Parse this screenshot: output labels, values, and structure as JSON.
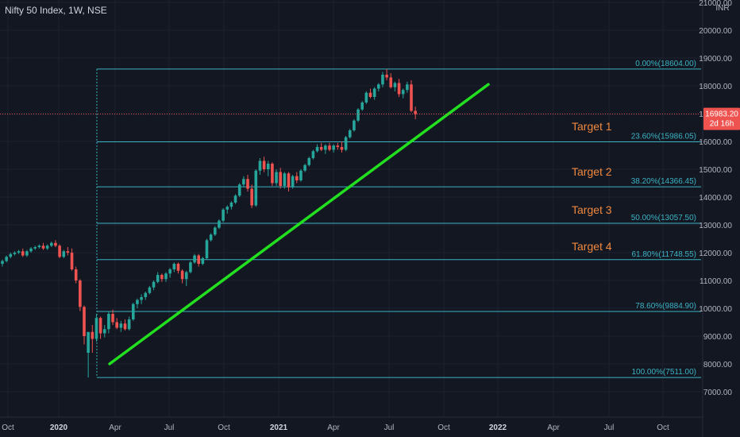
{
  "title": "Nifty 50 Index, 1W, NSE",
  "currency": "INR",
  "price_tag": {
    "price": "16983.20",
    "countdown": "2d 16h"
  },
  "colors": {
    "background": "#131722",
    "up": "#26a69a",
    "down": "#ef5350",
    "fib": "#3bb3c3",
    "trend": "#22e01f",
    "target": "#f0883e",
    "axis_text": "#b2b5be"
  },
  "chart_data": {
    "type": "candlestick",
    "title": "Nifty 50 Index, 1W, NSE",
    "x_tick_labels": [
      "Oct",
      "2020",
      "Apr",
      "Jul",
      "Oct",
      "2021",
      "Apr",
      "Jul",
      "Oct",
      "2022",
      "Apr",
      "Jul",
      "Oct"
    ],
    "y_tick_labels": [
      "7000.00",
      "8000.00",
      "9000.00",
      "10000.00",
      "11000.00",
      "12000.00",
      "13000.00",
      "14000.00",
      "15000.00",
      "16000.00",
      "17000.00",
      "18000.00",
      "19000.00",
      "20000.00",
      "21000.00"
    ],
    "ylim": [
      6600,
      21000
    ],
    "last_price": 16983.2,
    "fib_levels": [
      {
        "label": "0.00%(18604.00)",
        "value": 18604.0
      },
      {
        "label": "23.60%(15986.05)",
        "value": 15986.05
      },
      {
        "label": "38.20%(14366.45)",
        "value": 14366.45
      },
      {
        "label": "50.00%(13057.50)",
        "value": 13057.5
      },
      {
        "label": "61.80%(11748.55)",
        "value": 11748.55
      },
      {
        "label": "78.60%(9884.90)",
        "value": 9884.9
      },
      {
        "label": "100.00%(7511.00)",
        "value": 7511.0
      }
    ],
    "targets": [
      {
        "label": "Target 1",
        "value": 16400
      },
      {
        "label": "Target 2",
        "value": 14770
      },
      {
        "label": "Target 3",
        "value": 13400
      },
      {
        "label": "Target 4",
        "value": 12080
      }
    ],
    "trendline": {
      "start": {
        "date": "2020-03-23",
        "value": 8000
      },
      "end": {
        "date": "2021-12-06",
        "value": 18050
      }
    },
    "candles": [
      [
        11600,
        11750,
        11500,
        11700
      ],
      [
        11700,
        11900,
        11650,
        11850
      ],
      [
        11850,
        12000,
        11800,
        11950
      ],
      [
        11950,
        12050,
        11900,
        12000
      ],
      [
        12000,
        12100,
        11950,
        12050
      ],
      [
        12050,
        12150,
        11850,
        11900
      ],
      [
        11900,
        12100,
        11850,
        12050
      ],
      [
        12050,
        12200,
        12000,
        12150
      ],
      [
        12150,
        12250,
        12100,
        12200
      ],
      [
        12200,
        12300,
        12150,
        12250
      ],
      [
        12250,
        12350,
        12100,
        12150
      ],
      [
        12150,
        12300,
        12100,
        12250
      ],
      [
        12250,
        12400,
        12200,
        12350
      ],
      [
        12350,
        12450,
        12200,
        12250
      ],
      [
        12250,
        12300,
        11800,
        11850
      ],
      [
        11850,
        12100,
        11800,
        12050
      ],
      [
        12050,
        12200,
        11900,
        12000
      ],
      [
        12000,
        12150,
        11350,
        11400
      ],
      [
        11400,
        11500,
        10900,
        11000
      ],
      [
        11000,
        11050,
        9900,
        10050
      ],
      [
        10050,
        10100,
        8700,
        9000
      ],
      [
        8400,
        9100,
        7511,
        9150
      ],
      [
        9150,
        9400,
        8400,
        8900
      ],
      [
        8900,
        9800,
        8800,
        9650
      ],
      [
        9650,
        9700,
        8900,
        9100
      ],
      [
        9100,
        9400,
        8950,
        9250
      ],
      [
        9250,
        9900,
        9100,
        9800
      ],
      [
        9800,
        9950,
        9400,
        9500
      ],
      [
        9500,
        9650,
        9250,
        9300
      ],
      [
        9300,
        9550,
        9150,
        9450
      ],
      [
        9450,
        9600,
        9200,
        9250
      ],
      [
        9250,
        9700,
        9200,
        9600
      ],
      [
        9600,
        10200,
        9550,
        10150
      ],
      [
        10150,
        10350,
        10000,
        10300
      ],
      [
        10300,
        10500,
        10150,
        10400
      ],
      [
        10400,
        10600,
        10300,
        10550
      ],
      [
        10550,
        10800,
        10500,
        10750
      ],
      [
        10750,
        11000,
        10650,
        10950
      ],
      [
        10950,
        11300,
        10900,
        11200
      ],
      [
        11200,
        11250,
        10950,
        11050
      ],
      [
        11050,
        11300,
        10950,
        11250
      ],
      [
        11250,
        11450,
        11100,
        11400
      ],
      [
        11400,
        11650,
        11300,
        11600
      ],
      [
        11600,
        11650,
        11250,
        11350
      ],
      [
        11350,
        11400,
        10900,
        11050
      ],
      [
        11050,
        11350,
        10800,
        11300
      ],
      [
        11300,
        11700,
        11250,
        11650
      ],
      [
        11650,
        11950,
        11600,
        11900
      ],
      [
        11900,
        11950,
        11500,
        11600
      ],
      [
        11600,
        11850,
        11550,
        11800
      ],
      [
        11800,
        12500,
        11750,
        12450
      ],
      [
        12450,
        12700,
        12400,
        12650
      ],
      [
        12650,
        12950,
        12600,
        12900
      ],
      [
        12900,
        13200,
        12850,
        13150
      ],
      [
        13150,
        13600,
        13100,
        13550
      ],
      [
        13550,
        13700,
        13400,
        13650
      ],
      [
        13650,
        13850,
        13550,
        13800
      ],
      [
        13800,
        14100,
        13750,
        14050
      ],
      [
        14050,
        14500,
        14000,
        14450
      ],
      [
        14450,
        14750,
        14350,
        14650
      ],
      [
        14650,
        14800,
        14200,
        14300
      ],
      [
        14300,
        14450,
        13600,
        13700
      ],
      [
        13700,
        15000,
        13650,
        14950
      ],
      [
        14950,
        15400,
        14800,
        15300
      ],
      [
        15300,
        15450,
        14900,
        15000
      ],
      [
        15000,
        15300,
        14750,
        15200
      ],
      [
        15200,
        15250,
        14400,
        14500
      ],
      [
        14500,
        15000,
        14400,
        14900
      ],
      [
        14900,
        15050,
        14300,
        14400
      ],
      [
        14400,
        14900,
        14300,
        14850
      ],
      [
        14850,
        14900,
        14200,
        14350
      ],
      [
        14350,
        14800,
        14300,
        14750
      ],
      [
        14750,
        14900,
        14500,
        14600
      ],
      [
        14600,
        15000,
        14550,
        14950
      ],
      [
        14950,
        15200,
        14900,
        15150
      ],
      [
        15150,
        15450,
        15100,
        15400
      ],
      [
        15400,
        15700,
        15350,
        15650
      ],
      [
        15650,
        15900,
        15600,
        15800
      ],
      [
        15800,
        15950,
        15650,
        15700
      ],
      [
        15700,
        15900,
        15550,
        15850
      ],
      [
        15850,
        15950,
        15650,
        15700
      ],
      [
        15700,
        15900,
        15600,
        15850
      ],
      [
        15850,
        15950,
        15700,
        15800
      ],
      [
        15800,
        16000,
        15600,
        15700
      ],
      [
        15700,
        16200,
        15650,
        16150
      ],
      [
        16150,
        16450,
        16100,
        16400
      ],
      [
        16400,
        16800,
        16350,
        16750
      ],
      [
        16750,
        17200,
        16700,
        17150
      ],
      [
        17150,
        17450,
        17100,
        17400
      ],
      [
        17400,
        17800,
        17350,
        17750
      ],
      [
        17750,
        17900,
        17550,
        17600
      ],
      [
        17600,
        17950,
        17500,
        17900
      ],
      [
        17900,
        18100,
        17800,
        18050
      ],
      [
        18050,
        18500,
        17950,
        18400
      ],
      [
        18400,
        18604,
        18200,
        18300
      ],
      [
        18300,
        18450,
        17900,
        17950
      ],
      [
        17950,
        18150,
        17800,
        18100
      ],
      [
        18100,
        18250,
        17600,
        17700
      ],
      [
        17700,
        17900,
        17550,
        17850
      ],
      [
        17850,
        18150,
        17750,
        18050
      ],
      [
        18050,
        18200,
        17050,
        17100
      ],
      [
        17100,
        17250,
        16800,
        16983.2
      ]
    ]
  }
}
